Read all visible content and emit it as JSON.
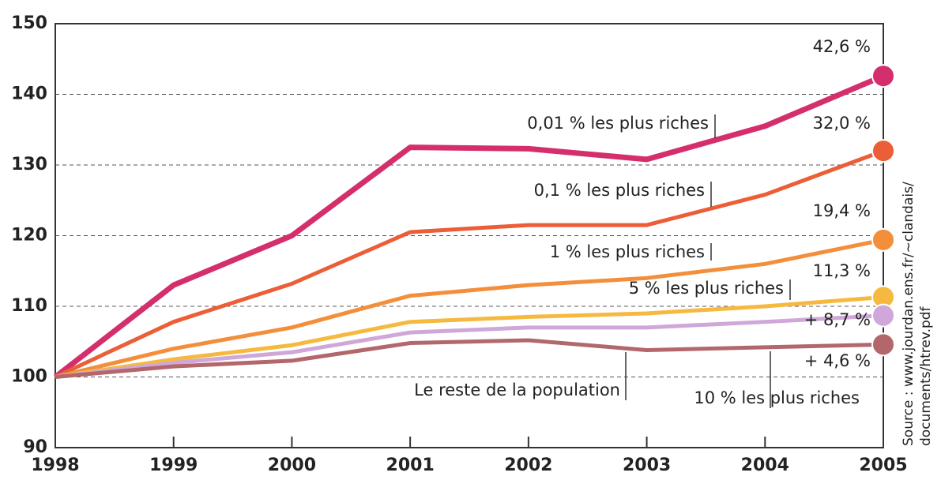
{
  "chart_data": {
    "type": "line",
    "x": [
      1998,
      1999,
      2000,
      2001,
      2002,
      2003,
      2004,
      2005
    ],
    "xlim": [
      1998,
      2005
    ],
    "xticks": [
      1998,
      1999,
      2000,
      2001,
      2002,
      2003,
      2004,
      2005
    ],
    "ylim": [
      90,
      150
    ],
    "yticks": [
      90,
      100,
      110,
      120,
      130,
      140,
      150
    ],
    "grid": true,
    "series": [
      {
        "name": "0,01 % les plus riches",
        "end_label": "42,6 %",
        "color": "#d42f6c",
        "values": [
          100,
          113,
          120,
          132.5,
          132.3,
          130.8,
          135.5,
          142.6
        ]
      },
      {
        "name": "0,1 % les plus riches",
        "end_label": "32,0 %",
        "color": "#ec5e37",
        "values": [
          100,
          107.8,
          113.2,
          120.5,
          121.5,
          121.5,
          125.8,
          132.0
        ]
      },
      {
        "name": "1 % les plus riches",
        "end_label": "19,4 %",
        "color": "#f38f3a",
        "values": [
          100,
          104,
          107,
          111.5,
          113,
          114,
          116,
          119.4
        ]
      },
      {
        "name": "5 % les plus riches",
        "end_label": "11,3 %",
        "color": "#f6b940",
        "values": [
          100,
          102.5,
          104.5,
          107.8,
          108.5,
          109,
          110,
          111.3
        ]
      },
      {
        "name": "10 % les plus riches",
        "end_label": "+ 8,7 %",
        "color": "#cfa7d9",
        "values": [
          100,
          102,
          103.5,
          106.3,
          107,
          107,
          107.8,
          108.7
        ]
      },
      {
        "name": "Le reste de la population",
        "end_label": "+ 4,6 %",
        "color": "#b3676b",
        "values": [
          100,
          101.5,
          102.3,
          104.8,
          105.2,
          103.8,
          104.2,
          104.6
        ]
      }
    ],
    "source": "Source : www.jourdan.ens.fr/~clandais/",
    "source_line2": "documents/htrev.pdf"
  }
}
